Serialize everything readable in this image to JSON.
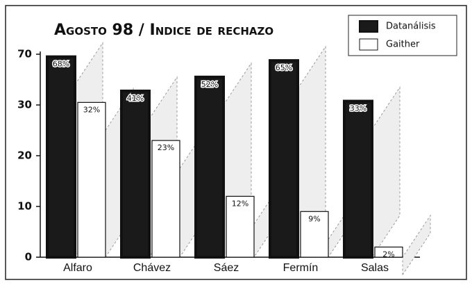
{
  "chart_data": {
    "type": "bar",
    "title": "Agosto 98 / Indice de rechazo",
    "categories": [
      "Alfaro",
      "Chávez",
      "Sáez",
      "Fermín",
      "Salas"
    ],
    "series": [
      {
        "name": "Datanálisis",
        "color": "#1a1a1a",
        "values": [
          68,
          41,
          52,
          65,
          33
        ],
        "value_labels": [
          "68%",
          "41%",
          "52%",
          "65%",
          "33%"
        ]
      },
      {
        "name": "Gaither",
        "color": "#ffffff",
        "values": [
          32,
          23,
          12,
          9,
          2
        ],
        "value_labels": [
          "32%",
          "23%",
          "12%",
          "9%",
          "2%"
        ]
      }
    ],
    "ylim": [
      0,
      70
    ],
    "yticks": [
      0,
      10,
      20,
      30,
      70
    ],
    "legend": "top-right"
  }
}
